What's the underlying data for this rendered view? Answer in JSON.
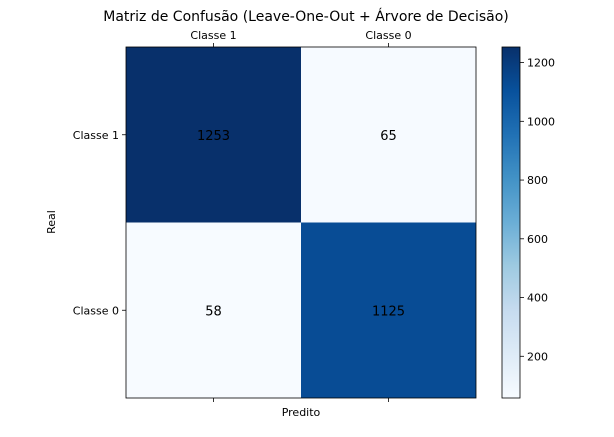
{
  "chart_data": {
    "type": "heatmap",
    "title": "Matriz de Confusão (Leave-One-Out + Árvore de Decisão)",
    "xlabel": "Predito",
    "ylabel": "Real",
    "x_categories": [
      "Classe 1",
      "Classe 0"
    ],
    "y_categories": [
      "Classe 1",
      "Classe 0"
    ],
    "matrix": [
      [
        1253,
        65
      ],
      [
        58,
        1125
      ]
    ],
    "x_tick_position": "top",
    "colormap": "Blues",
    "colorbar": {
      "range": [
        58,
        1253
      ],
      "ticks": [
        200,
        400,
        600,
        800,
        1000,
        1200
      ]
    },
    "grid": false,
    "colors": {
      "low": "#f7fbff",
      "high": "#08306b"
    }
  }
}
